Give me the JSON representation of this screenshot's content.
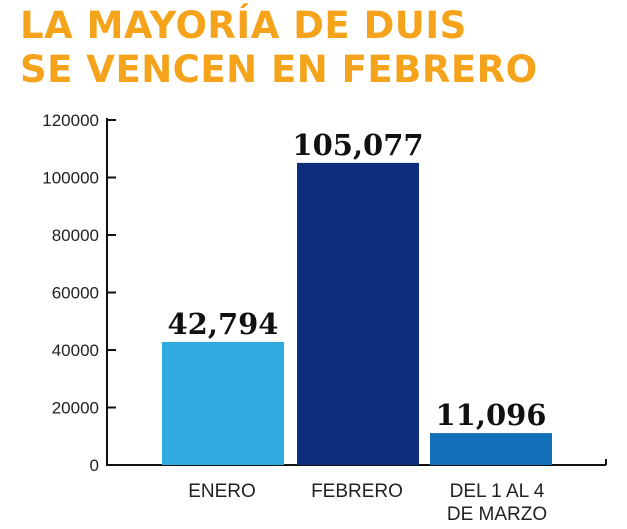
{
  "chart_data": {
    "type": "bar",
    "title_lines": [
      "LA MAYORÍA DE DUIS",
      "SE VENCEN EN FEBRERO"
    ],
    "categories": [
      [
        "ENERO"
      ],
      [
        "FEBRERO"
      ],
      [
        "DEL 1 AL 4",
        "DE MARZO"
      ]
    ],
    "values": [
      42794,
      105077,
      11096
    ],
    "value_labels": [
      "42,794",
      "105,077",
      "11,096"
    ],
    "colors": [
      "#2eaadf",
      "#0c2d7c",
      "#1270b9"
    ],
    "ylim": [
      0,
      120000
    ],
    "yticks": [
      0,
      20000,
      40000,
      60000,
      80000,
      100000,
      120000
    ],
    "ytick_labels": [
      "0",
      "20000",
      "40000",
      "60000",
      "80000",
      "100000",
      "120000"
    ],
    "grid": false,
    "legend": "none"
  }
}
